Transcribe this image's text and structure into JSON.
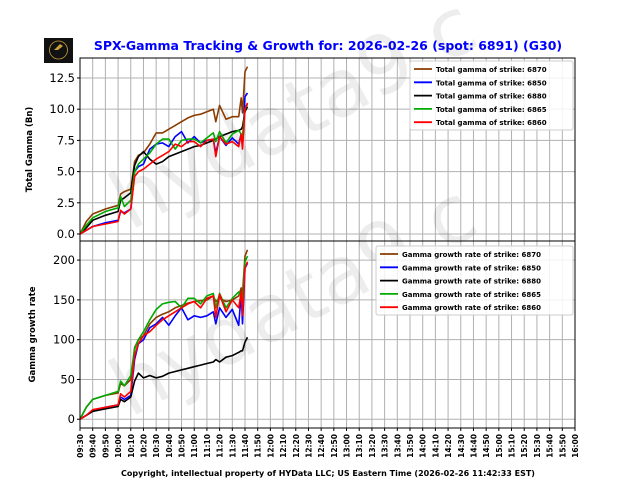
{
  "title": "SPX-Gamma Tracking & Growth for: 2026-02-26 (spot: 6891) (G30)",
  "footer": "Copyright, intellectual property of HYData LLC; US Eastern Time (2026-02-26 11:42:33 EST)",
  "watermark": "hydata9.c",
  "logo_text": "HYData",
  "colors": {
    "title": "#0000ff",
    "6870": "#8b3a00",
    "6850": "#0000ff",
    "6880": "#000000",
    "6865": "#00aa00",
    "6860": "#ff0000",
    "grid": "#b0b0b0"
  },
  "chart_data": [
    {
      "type": "line",
      "ylabel": "Total Gamma (Bn)",
      "ylim": [
        -0.56,
        14.1
      ],
      "yticks": [
        "0.0",
        "2.5",
        "5.0",
        "7.5",
        "10.0",
        "12.5"
      ],
      "xlim": [
        "09:30",
        "16:00"
      ],
      "grid": true,
      "legend_placement": "top-right",
      "x": [
        "09:30",
        "09:35",
        "09:40",
        "09:50",
        "10:00",
        "10:02",
        "10:05",
        "10:10",
        "10:13",
        "10:16",
        "10:20",
        "10:25",
        "10:30",
        "10:35",
        "10:40",
        "10:45",
        "10:50",
        "10:55",
        "11:00",
        "11:05",
        "11:10",
        "11:15",
        "11:17",
        "11:20",
        "11:25",
        "11:30",
        "11:35",
        "11:37",
        "11:38",
        "11:40",
        "11:42"
      ],
      "series": [
        {
          "name": "Total gamma of strike: 6870",
          "strike": "6870",
          "values": [
            0,
            1.0,
            1.6,
            2.0,
            2.3,
            3.2,
            3.4,
            3.6,
            5.8,
            6.3,
            6.5,
            7.2,
            8.1,
            8.1,
            8.4,
            8.7,
            9.0,
            9.3,
            9.5,
            9.6,
            9.8,
            10.0,
            9.0,
            10.3,
            9.2,
            9.4,
            9.4,
            10.9,
            9.7,
            13.0,
            13.4
          ]
        },
        {
          "name": "Total gamma of strike: 6850",
          "strike": "6850",
          "values": [
            0,
            0.3,
            0.6,
            0.9,
            1.1,
            1.8,
            1.7,
            2.0,
            5.0,
            5.4,
            5.6,
            6.8,
            7.2,
            7.3,
            7.0,
            7.8,
            8.2,
            7.3,
            7.8,
            7.3,
            7.5,
            7.6,
            6.5,
            7.8,
            7.1,
            7.7,
            7.2,
            8.0,
            7.0,
            11.0,
            11.3
          ]
        },
        {
          "name": "Total gamma of strike: 6880",
          "strike": "6880",
          "values": [
            0,
            0.5,
            1.1,
            1.5,
            1.8,
            2.7,
            2.9,
            3.3,
            5.5,
            6.2,
            6.6,
            6.0,
            5.6,
            5.8,
            6.2,
            6.4,
            6.6,
            6.8,
            7.0,
            7.1,
            7.3,
            7.5,
            7.6,
            7.8,
            8.0,
            8.2,
            8.3,
            8.4,
            8.6,
            9.8,
            10.2
          ]
        },
        {
          "name": "Total gamma of strike: 6865",
          "strike": "6865",
          "values": [
            0,
            0.7,
            1.3,
            1.8,
            2.1,
            3.0,
            2.2,
            2.7,
            5.0,
            5.6,
            6.0,
            6.5,
            7.2,
            7.6,
            7.6,
            6.8,
            7.5,
            7.6,
            7.6,
            7.3,
            7.7,
            8.1,
            7.4,
            8.2,
            7.3,
            8.0,
            8.3,
            8.0,
            7.8,
            10.0,
            10.4
          ]
        },
        {
          "name": "Total gamma of strike: 6860",
          "strike": "6860",
          "values": [
            0,
            0.3,
            0.6,
            0.8,
            1.0,
            1.9,
            1.6,
            2.0,
            4.6,
            5.0,
            5.2,
            5.6,
            6.0,
            6.3,
            6.6,
            7.2,
            7.0,
            7.4,
            7.4,
            7.0,
            7.5,
            7.6,
            6.2,
            7.8,
            7.2,
            7.4,
            7.0,
            8.0,
            6.8,
            10.0,
            10.5
          ]
        }
      ]
    },
    {
      "type": "line",
      "ylabel": "Gamma growth rate",
      "ylim": [
        -11,
        224
      ],
      "yticks": [
        "0",
        "50",
        "100",
        "150",
        "200"
      ],
      "xlim": [
        "09:30",
        "16:00"
      ],
      "xticks": [
        "09:30",
        "09:40",
        "09:50",
        "10:00",
        "10:10",
        "10:20",
        "10:30",
        "10:40",
        "10:50",
        "11:00",
        "11:10",
        "11:20",
        "11:30",
        "11:40",
        "11:50",
        "12:00",
        "12:10",
        "12:20",
        "12:30",
        "12:40",
        "12:50",
        "13:00",
        "13:10",
        "13:20",
        "13:30",
        "13:40",
        "13:50",
        "14:00",
        "14:10",
        "14:20",
        "14:30",
        "14:40",
        "14:50",
        "15:00",
        "15:10",
        "15:20",
        "15:30",
        "15:40",
        "15:50",
        "16:00"
      ],
      "grid": true,
      "legend_placement": "top-right",
      "x": [
        "09:30",
        "09:35",
        "09:40",
        "09:50",
        "10:00",
        "10:02",
        "10:05",
        "10:10",
        "10:13",
        "10:16",
        "10:20",
        "10:25",
        "10:30",
        "10:35",
        "10:40",
        "10:45",
        "10:50",
        "10:55",
        "11:00",
        "11:05",
        "11:10",
        "11:15",
        "11:17",
        "11:20",
        "11:25",
        "11:30",
        "11:35",
        "11:37",
        "11:38",
        "11:40",
        "11:42"
      ],
      "series": [
        {
          "name": "Gamma growth rate of strike: 6870",
          "strike": "6870",
          "values": [
            0,
            15,
            25,
            30,
            33,
            45,
            42,
            50,
            90,
            100,
            105,
            120,
            128,
            132,
            135,
            140,
            143,
            146,
            148,
            149,
            150,
            155,
            148,
            152,
            148,
            150,
            155,
            165,
            158,
            205,
            213
          ]
        },
        {
          "name": "Gamma growth rate of strike: 6850",
          "strike": "6850",
          "values": [
            0,
            5,
            10,
            15,
            18,
            28,
            25,
            30,
            75,
            95,
            100,
            115,
            120,
            128,
            118,
            130,
            140,
            125,
            130,
            128,
            130,
            135,
            120,
            140,
            128,
            138,
            118,
            158,
            120,
            190,
            196
          ]
        },
        {
          "name": "Gamma growth rate of strike: 6880",
          "strike": "6880",
          "values": [
            0,
            5,
            10,
            13,
            16,
            25,
            22,
            28,
            48,
            58,
            52,
            55,
            52,
            54,
            58,
            60,
            62,
            64,
            66,
            68,
            70,
            72,
            75,
            72,
            78,
            80,
            84,
            86,
            86,
            97,
            103
          ]
        },
        {
          "name": "Gamma growth rate of strike: 6865",
          "strike": "6865",
          "values": [
            0,
            15,
            25,
            30,
            35,
            48,
            42,
            55,
            88,
            100,
            110,
            125,
            138,
            145,
            147,
            148,
            140,
            152,
            152,
            145,
            155,
            158,
            140,
            158,
            140,
            152,
            160,
            155,
            150,
            198,
            205
          ]
        },
        {
          "name": "Gamma growth rate of strike: 6860",
          "strike": "6860",
          "values": [
            0,
            5,
            12,
            15,
            18,
            32,
            28,
            35,
            80,
            95,
            105,
            110,
            118,
            125,
            130,
            135,
            140,
            145,
            148,
            140,
            152,
            155,
            128,
            157,
            135,
            150,
            140,
            160,
            130,
            190,
            198
          ]
        }
      ]
    }
  ]
}
